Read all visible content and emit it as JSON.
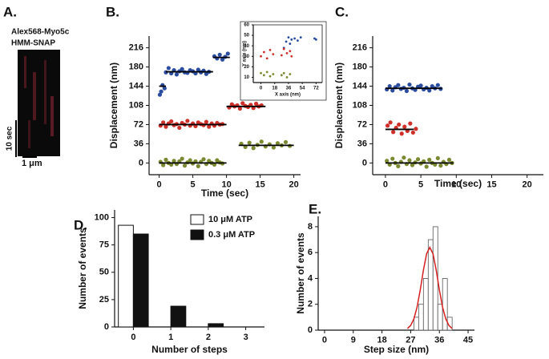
{
  "panel_labels": [
    "A.",
    "B.",
    "C.",
    "D.",
    "E."
  ],
  "kymograph": {
    "title_lines": [
      "Alex568-Myo5c",
      "HMM-SNAP"
    ],
    "time_scale": "10 sec",
    "space_scale": "1 μm"
  },
  "chart_data": [
    {
      "type": "scatter",
      "xlabel": "Time (sec)",
      "ylabel": "Displacement (nm)",
      "xlim": [
        -1.5,
        21
      ],
      "xticks": [
        0,
        5,
        10,
        15,
        20
      ],
      "ylim": [
        -22,
        238
      ],
      "yticks": [
        0,
        36,
        72,
        108,
        144,
        180,
        216
      ],
      "series": [
        {
          "color": "#2a4da0",
          "x": [
            0.1,
            0.3,
            0.5,
            0.8,
            1.0,
            1.4,
            1.8,
            2.2,
            2.6,
            3.0,
            3.4,
            3.8,
            4.2,
            4.6,
            5.0,
            5.4,
            5.8,
            6.2,
            6.6,
            7.0,
            7.4,
            8.2,
            8.6,
            9.0,
            9.4,
            9.8,
            10.2
          ],
          "values": [
            128,
            134,
            146,
            140,
            170,
            178,
            168,
            174,
            166,
            172,
            176,
            170,
            169,
            174,
            172,
            168,
            175,
            170,
            173,
            167,
            171,
            200,
            196,
            203,
            194,
            199,
            205
          ]
        },
        {
          "color": "#d0302a",
          "x": [
            0.2,
            0.6,
            1.0,
            1.4,
            1.8,
            2.2,
            2.6,
            3.0,
            3.4,
            3.8,
            4.2,
            4.6,
            5.0,
            5.4,
            5.8,
            6.2,
            6.6,
            7.0,
            7.4,
            7.8,
            8.2,
            8.6,
            9.0,
            9.4,
            10.4,
            10.8,
            11.2,
            11.6,
            12.0,
            12.4,
            12.8,
            13.2,
            13.6,
            14.0,
            14.4,
            14.8,
            15.2
          ],
          "values": [
            70,
            76,
            68,
            74,
            78,
            71,
            73,
            66,
            75,
            72,
            79,
            70,
            74,
            69,
            76,
            73,
            71,
            77,
            68,
            74,
            70,
            75,
            72,
            73,
            104,
            110,
            106,
            108,
            102,
            112,
            107,
            105,
            109,
            103,
            111,
            106,
            108
          ]
        },
        {
          "color": "#7a8a30",
          "x": [
            0.2,
            0.6,
            1.0,
            1.4,
            1.8,
            2.2,
            2.6,
            3.0,
            3.4,
            3.8,
            4.2,
            4.6,
            5.0,
            5.4,
            5.8,
            6.2,
            6.6,
            7.0,
            7.4,
            7.8,
            8.2,
            8.6,
            9.0,
            9.4,
            12.2,
            12.8,
            13.4,
            14.0,
            14.6,
            15.2,
            15.8,
            16.4,
            17.0,
            17.6,
            18.2,
            18.8,
            19.4
          ],
          "values": [
            2,
            -4,
            6,
            0,
            -3,
            4,
            -2,
            3,
            8,
            -5,
            1,
            5,
            -1,
            3,
            -6,
            2,
            7,
            -2,
            4,
            0,
            -3,
            5,
            1,
            -1,
            36,
            30,
            38,
            28,
            34,
            40,
            31,
            35,
            29,
            37,
            33,
            39,
            32
          ]
        }
      ],
      "fit_color": "#000000",
      "fit_lines": [
        {
          "x": [
            0,
            1
          ],
          "y": 144
        },
        {
          "x": [
            1,
            8
          ],
          "y": 171
        },
        {
          "x": [
            8,
            10.5
          ],
          "y": 198
        },
        {
          "x": [
            0,
            10
          ],
          "y": 72
        },
        {
          "x": [
            10,
            15.8
          ],
          "y": 106
        },
        {
          "x": [
            0,
            10
          ],
          "y": 0
        },
        {
          "x": [
            11.8,
            20
          ],
          "y": 33
        }
      ]
    },
    {
      "type": "scatter",
      "xlabel": "X axis (nm)",
      "ylabel": "Y axis (nm)",
      "xlim": [
        -10,
        80
      ],
      "xticks": [
        0,
        18,
        36,
        54,
        72
      ],
      "ylim": [
        5,
        60
      ],
      "yticks": [
        10,
        20,
        30,
        40,
        50,
        60
      ],
      "series": [
        {
          "color": "#2a4da0",
          "x": [
            30,
            33,
            36,
            38,
            40,
            44,
            48,
            52,
            70,
            72
          ],
          "values": [
            38,
            44,
            48,
            42,
            46,
            47,
            45,
            48,
            47,
            46
          ]
        },
        {
          "color": "#d0302a",
          "x": [
            0,
            4,
            8,
            12,
            16,
            27,
            30,
            34,
            38,
            40
          ],
          "values": [
            30,
            34,
            28,
            36,
            32,
            31,
            37,
            33,
            35,
            30
          ]
        },
        {
          "color": "#7a8a30",
          "x": [
            0,
            4,
            8,
            12,
            16,
            27,
            30,
            34,
            38
          ],
          "values": [
            14,
            12,
            15,
            11,
            13,
            12,
            14,
            10,
            13
          ]
        }
      ]
    },
    {
      "type": "scatter",
      "xlabel": "Time (sec)",
      "ylabel": "Displacement (nm)",
      "xlim": [
        -1.8,
        22.3
      ],
      "xticks": [
        0,
        5,
        10,
        15,
        20
      ],
      "ylim": [
        -22,
        238
      ],
      "yticks": [
        0,
        36,
        72,
        108,
        144,
        180,
        216
      ],
      "series": [
        {
          "color": "#2a4da0",
          "x": [
            0.2,
            0.6,
            1.0,
            1.4,
            1.8,
            2.2,
            2.6,
            3.0,
            3.4,
            3.8,
            4.2,
            4.6,
            5.0,
            5.4,
            5.8,
            6.2,
            6.6,
            7.0,
            7.4,
            7.8
          ],
          "values": [
            138,
            144,
            136,
            142,
            146,
            139,
            141,
            135,
            147,
            140,
            137,
            143,
            145,
            138,
            141,
            136,
            144,
            140,
            146,
            139
          ]
        },
        {
          "color": "#d0302a",
          "x": [
            0.3,
            0.7,
            1.1,
            1.5,
            1.9,
            2.3,
            2.7,
            3.1,
            3.5,
            3.9,
            4.3
          ],
          "values": [
            70,
            76,
            58,
            66,
            72,
            55,
            68,
            60,
            74,
            57,
            64
          ]
        },
        {
          "color": "#7a8a30",
          "x": [
            0.2,
            0.6,
            1.0,
            1.4,
            1.8,
            2.2,
            2.6,
            3.0,
            3.4,
            3.8,
            4.2,
            4.6,
            5.0,
            5.4,
            5.8,
            6.2,
            6.6,
            7.0,
            7.4,
            7.8,
            8.2,
            8.6,
            9.0,
            9.4
          ],
          "values": [
            4,
            -3,
            8,
            0,
            -6,
            2,
            10,
            -2,
            5,
            -4,
            1,
            7,
            -1,
            3,
            -7,
            6,
            0,
            -3,
            9,
            -5,
            2,
            -2,
            6,
            0
          ]
        }
      ],
      "fit_color": "#000000",
      "fit_lines": [
        {
          "x": [
            0,
            8
          ],
          "y": 140
        },
        {
          "x": [
            0,
            4
          ],
          "y": 63
        },
        {
          "x": [
            0,
            9.6
          ],
          "y": 0
        }
      ]
    },
    {
      "type": "bar",
      "xlabel": "Number of steps",
      "ylabel": "Number of events",
      "categories": [
        "0",
        "1",
        "2",
        "3"
      ],
      "ylim": [
        0,
        107
      ],
      "yticks": [
        0,
        25,
        50,
        75,
        100
      ],
      "legend": "upper right",
      "series": [
        {
          "name": "10 μM ATP",
          "color": "#ffffff",
          "values": [
            93,
            0,
            0,
            0
          ]
        },
        {
          "name": "0.3 μM ATP",
          "color": "#111111",
          "values": [
            85,
            19,
            3,
            0
          ]
        }
      ]
    },
    {
      "type": "histogram",
      "xlabel": "Step size (nm)",
      "ylabel": "Number of events",
      "bins": [
        28,
        29.5,
        31,
        32.5,
        34,
        35.5,
        37,
        38.5,
        40
      ],
      "values": [
        1,
        2,
        4,
        7,
        8,
        2,
        4,
        1
      ],
      "color": "#ffffff",
      "xlim": [
        -2,
        47
      ],
      "xticks": [
        0,
        9,
        18,
        27,
        36,
        45
      ],
      "ylim": [
        0,
        8.8
      ],
      "yticks": [
        0,
        2,
        4,
        6,
        8
      ],
      "fit": {
        "color": "#d62020",
        "x": [
          26,
          27,
          28,
          29,
          30,
          31,
          32,
          33,
          34,
          35,
          36,
          37,
          38,
          39,
          40
        ],
        "y": [
          0.13,
          0.36,
          0.87,
          1.78,
          3.11,
          4.65,
          5.91,
          6.4,
          5.91,
          4.65,
          3.11,
          1.78,
          0.87,
          0.36,
          0.13
        ]
      }
    }
  ]
}
